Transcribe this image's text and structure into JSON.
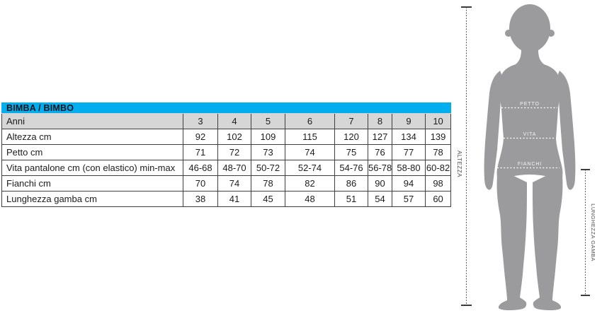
{
  "table": {
    "title": "BIMBA / BIMBO",
    "header_row": {
      "label": "Anni",
      "values": [
        "3",
        "4",
        "5",
        "6",
        "7",
        "8",
        "9",
        "10"
      ]
    },
    "rows": [
      {
        "label": "Altezza cm",
        "values": [
          "92",
          "102",
          "109",
          "115",
          "120",
          "127",
          "134",
          "139"
        ]
      },
      {
        "label": "Petto cm",
        "values": [
          "71",
          "72",
          "73",
          "74",
          "75",
          "76",
          "77",
          "78"
        ]
      },
      {
        "label": "Vita pantalone cm (con elastico) min-max",
        "values": [
          "46-68",
          "48-70",
          "50-72",
          "52-74",
          "54-76",
          "56-78",
          "58-80",
          "60-82"
        ]
      },
      {
        "label": "Fianchi cm",
        "values": [
          "70",
          "74",
          "78",
          "82",
          "86",
          "90",
          "94",
          "98"
        ]
      },
      {
        "label": "Lunghezza gamba cm",
        "values": [
          "38",
          "41",
          "45",
          "48",
          "51",
          "54",
          "57",
          "60"
        ]
      }
    ]
  },
  "figure": {
    "labels": {
      "chest": "PETTO",
      "waist": "VITA",
      "hips": "FIANCHI",
      "height": "ALTEZZA",
      "leg": "LUNGHEZZA GAMBA"
    }
  },
  "colors": {
    "header_bg": "#00aeef",
    "row_highlight_bg": "#d6d6d6",
    "table_border": "#3f3f3f",
    "silhouette": "#9b9b9d",
    "body_measure_line": "#ffffff",
    "dimension_line": "#3c3c3c"
  }
}
